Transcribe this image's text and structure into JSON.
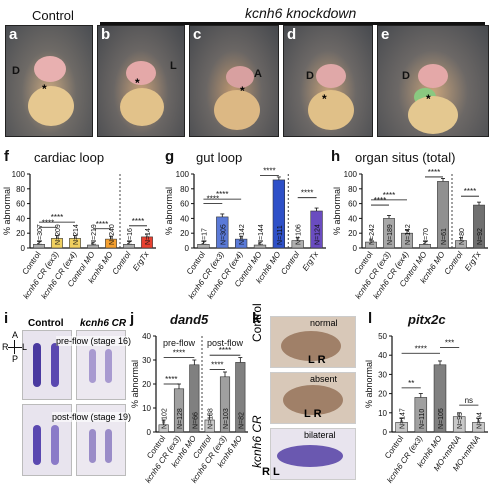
{
  "header": {
    "control": "Control",
    "knockdown": "kcnh6 knockdown"
  },
  "panel_labels": {
    "a": "a",
    "b": "b",
    "c": "c",
    "d": "d",
    "e": "e",
    "f": "f",
    "g": "g",
    "h": "h",
    "i": "i",
    "j": "j",
    "k": "k",
    "l": "l"
  },
  "photo_marks": {
    "a": {
      "arrow": "D",
      "star": "*"
    },
    "b": {
      "arrow": "L",
      "star": "*"
    },
    "c": {
      "arrow": "A",
      "star": "*"
    },
    "d": {
      "arrow": "D",
      "star": "*"
    },
    "e": {
      "arrow": "D",
      "star": "*"
    }
  },
  "chart_data": [
    {
      "type": "bar",
      "title": "cardiac loop",
      "ylabel": "% abnormal",
      "ylim": [
        0,
        100
      ],
      "yticks": [
        0,
        20,
        40,
        60,
        80,
        100
      ],
      "categories": [
        "Control",
        "kcnh6 CR (ex3)",
        "kcnh6 CR (ex4)",
        "Control MO",
        "kcnh6 MO",
        "Control",
        "ErgTx"
      ],
      "values": [
        5,
        13,
        13,
        4,
        12,
        5,
        15
      ],
      "n_labels": [
        "N=307",
        "N=209",
        "N=214",
        "N=219",
        "N=240",
        "N=16",
        "N=14"
      ],
      "colors": [
        "#b0b0b0",
        "#f0d060",
        "#f0d060",
        "#b0b0b0",
        "#f5a030",
        "#b0b0b0",
        "#e84030"
      ],
      "sig": [
        "****",
        "****",
        "****",
        "****"
      ]
    },
    {
      "type": "bar",
      "title": "gut loop",
      "ylabel": "% abnormal",
      "ylim": [
        0,
        100
      ],
      "yticks": [
        0,
        20,
        40,
        60,
        80,
        100
      ],
      "categories": [
        "Control",
        "kcnh6 CR (ex3)",
        "kcnh6 CR (ex4)",
        "Control MO",
        "kcnh6 MO",
        "Control",
        "ErgTx"
      ],
      "values": [
        5,
        42,
        12,
        4,
        92,
        10,
        50
      ],
      "n_labels": [
        "N=17",
        "N=305",
        "N=142",
        "N=144",
        "N=111",
        "N=106",
        "N=124"
      ],
      "colors": [
        "#b0b0b0",
        "#5a7ad8",
        "#5a7ad8",
        "#b0b0b0",
        "#2e50c8",
        "#b0b0b0",
        "#6a4cc0"
      ],
      "sig": [
        "****",
        "****",
        "****",
        "****"
      ]
    },
    {
      "type": "bar",
      "title": "organ situs (total)",
      "ylabel": "% abnormal",
      "ylim": [
        0,
        100
      ],
      "yticks": [
        0,
        20,
        40,
        60,
        80,
        100
      ],
      "categories": [
        "Control",
        "kcnh6 CR (ex3)",
        "kcnh6 CR (ex4)",
        "Control MO",
        "kcnh6 MO",
        "Control",
        "ErgTx"
      ],
      "values": [
        8,
        40,
        20,
        5,
        90,
        10,
        58
      ],
      "n_labels": [
        "N=242",
        "N=189",
        "N=142",
        "N=70",
        "N=61",
        "N=80",
        "N=92"
      ],
      "colors": [
        "#b0b0b0",
        "#a8a8a8",
        "#a8a8a8",
        "#b0b0b0",
        "#909090",
        "#b0b0b0",
        "#707070"
      ],
      "sig": [
        "****",
        "****",
        "****",
        "****"
      ]
    },
    {
      "type": "bar",
      "title": "dand5",
      "ylabel": "% abnormal",
      "ylim": [
        0,
        40
      ],
      "yticks": [
        0,
        10,
        20,
        30,
        40
      ],
      "groups": [
        "pre-flow",
        "post-flow"
      ],
      "categories": [
        "Control",
        "kcnh6 CR (ex3)",
        "kcnh6 MO",
        "Control",
        "kcnh6 CR (ex3)",
        "kcnh6 MO"
      ],
      "values": [
        3,
        18,
        28,
        5,
        23,
        29
      ],
      "n_labels": [
        "N=102",
        "N=128",
        "N=66",
        "N=138",
        "N=103",
        "N=82"
      ],
      "colors": [
        "#c8c8c8",
        "#a0a0a0",
        "#808080",
        "#c8c8c8",
        "#a0a0a0",
        "#808080"
      ],
      "sig": [
        "****",
        "****",
        "****",
        "****"
      ]
    },
    {
      "type": "bar",
      "title": "pitx2c",
      "ylabel": "% abnormal",
      "ylim": [
        0,
        50
      ],
      "yticks": [
        0,
        10,
        20,
        30,
        40,
        50
      ],
      "categories": [
        "Control",
        "kcnh6 CR (ex3)",
        "kcnh6 MO",
        "MO+mRNA",
        "MO+mRNA"
      ],
      "values": [
        5,
        18,
        35,
        8,
        5
      ],
      "n_labels": [
        "N=147",
        "N=110",
        "N=105",
        "N=95",
        "N=94"
      ],
      "colors": [
        "#c8c8c8",
        "#a0a0a0",
        "#808080",
        "#c8c8c8",
        "#c8c8c8"
      ],
      "sig": [
        "**",
        "****",
        "***",
        "ns"
      ]
    }
  ],
  "panel_i": {
    "col_control": "Control",
    "col_cr": "kcnh6 CR",
    "pre": "pre-flow (stage 16)",
    "post": "post-flow (stage 19)",
    "axes": {
      "a": "A",
      "p": "P",
      "r": "R",
      "l": "L"
    }
  },
  "panel_k": {
    "normal": "normal",
    "absent": "absent",
    "bilateral": "bilateral",
    "lr1": "L R",
    "lr2": "L R",
    "rl": "R  L",
    "side_control": "Control",
    "side_cr": "kcnh6 CR"
  }
}
